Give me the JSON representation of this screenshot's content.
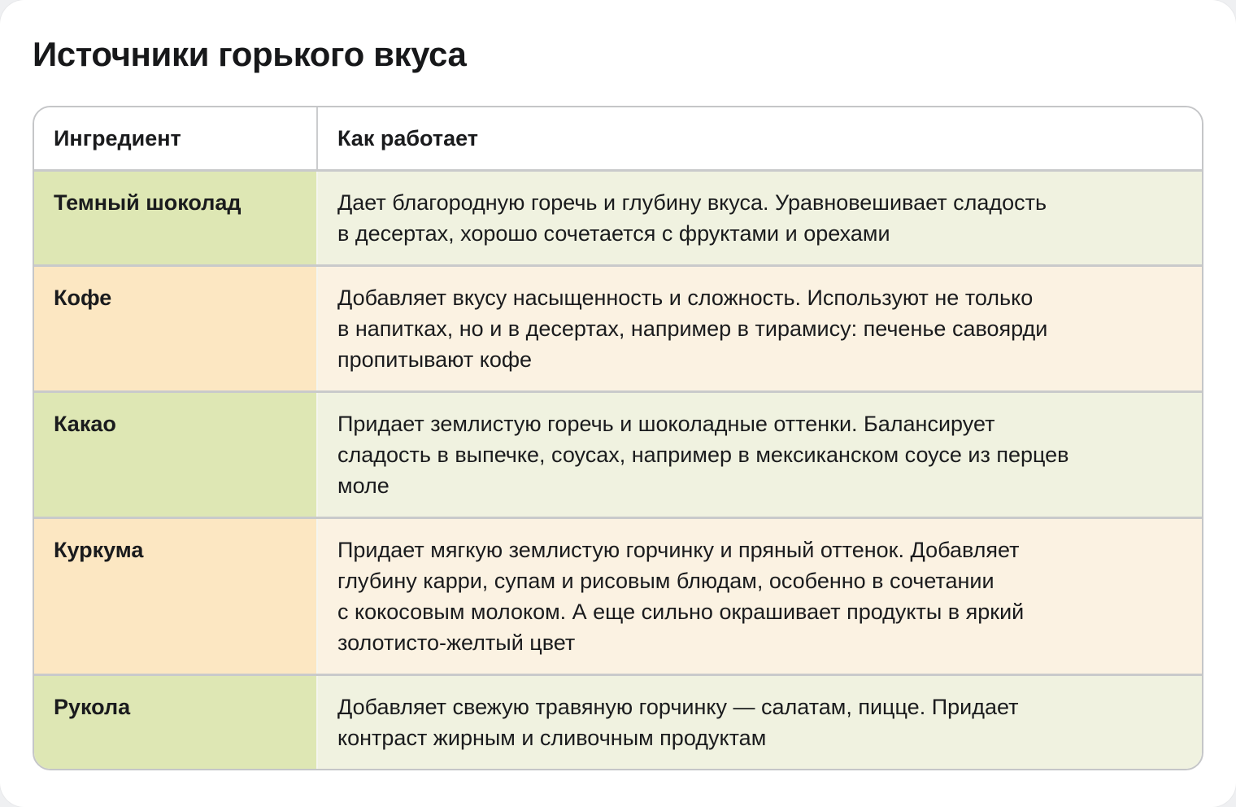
{
  "theme": {
    "page_bg": "#eff0f2",
    "card_bg": "#ffffff",
    "title": "#17181a",
    "text": "#1a1b1d",
    "header_bg": "#ffffff",
    "table_border": "#c5c6c8",
    "row_divider": "#c9cacb",
    "column_divider_header": "#cbccce",
    "column_divider_body": "#f4f5ef",
    "green_label": "#dee7b4",
    "green_body": "#f0f2e0",
    "orange_label": "#fce7c2",
    "orange_body": "#fbf2e2"
  },
  "chart_data": {
    "type": "table",
    "title": "Источники горького вкуса",
    "columns": [
      "Ингредиент",
      "Как работает"
    ],
    "rows": [
      {
        "ingredient": "Темный шоколад",
        "tint": "green",
        "description": "Дает благородную горечь и глубину вкуса. Уравновешивает сладость в десертах, хорошо сочетается с фруктами и орехами",
        "description_lines": [
          "Дает благородную горечь и глубину вкуса. Уравновешивает сладость",
          "в десертах, хорошо сочетается с фруктами и орехами"
        ]
      },
      {
        "ingredient": "Кофе",
        "tint": "orange",
        "description": "Добавляет вкусу насыщенность и сложность. Используют не только в напитках, но и в десертах, например в тирамису: печенье савоярди пропитывают кофе",
        "description_lines": [
          "Добавляет вкусу насыщенность и сложность. Используют не только",
          "в напитках, но и в десертах, например в тирамису: печенье савоярди",
          "пропитывают кофе"
        ]
      },
      {
        "ingredient": "Какао",
        "tint": "green",
        "description": "Придает землистую горечь и шоколадные оттенки. Балансирует сладость в выпечке, соусах, например в мексиканском соусе из перцев моле",
        "description_lines": [
          "Придает землистую горечь и шоколадные оттенки. Балансирует",
          "сладость в выпечке, соусах, например в мексиканском соусе из перцев",
          "моле"
        ]
      },
      {
        "ingredient": "Куркума",
        "tint": "orange",
        "description": "Придает мягкую землистую горчинку и пряный оттенок. Добавляет глубину карри, супам и рисовым блюдам, особенно в сочетании с кокосовым молоком. А еще сильно окрашивает продукты в яркий золотисто-желтый цвет",
        "description_lines": [
          "Придает мягкую землистую горчинку и пряный оттенок. Добавляет",
          "глубину карри, супам и рисовым блюдам, особенно в сочетании",
          "с кокосовым молоком. А еще сильно окрашивает продукты в яркий",
          "золотисто-желтый цвет"
        ]
      },
      {
        "ingredient": "Рукола",
        "tint": "green",
        "description": "Добавляет свежую травяную горчинку — салатам, пицце. Придает контраст жирным и сливочным продуктам",
        "description_lines": [
          "Добавляет свежую травяную горчинку — салатам, пицце. Придает",
          "контраст жирным и сливочным продуктам"
        ]
      }
    ]
  }
}
